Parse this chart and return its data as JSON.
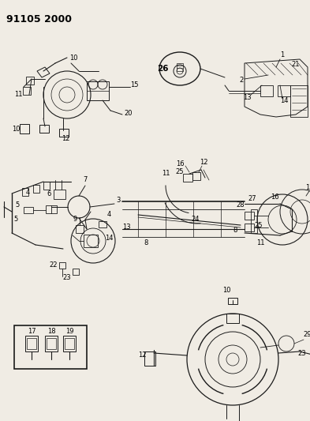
{
  "title": "91105 2000",
  "bg_color": "#f0ece4",
  "line_color": "#1a1a1a",
  "fig_width": 3.93,
  "fig_height": 5.33,
  "dpi": 100,
  "title_fontsize": 9,
  "label_fontsize": 6.0
}
